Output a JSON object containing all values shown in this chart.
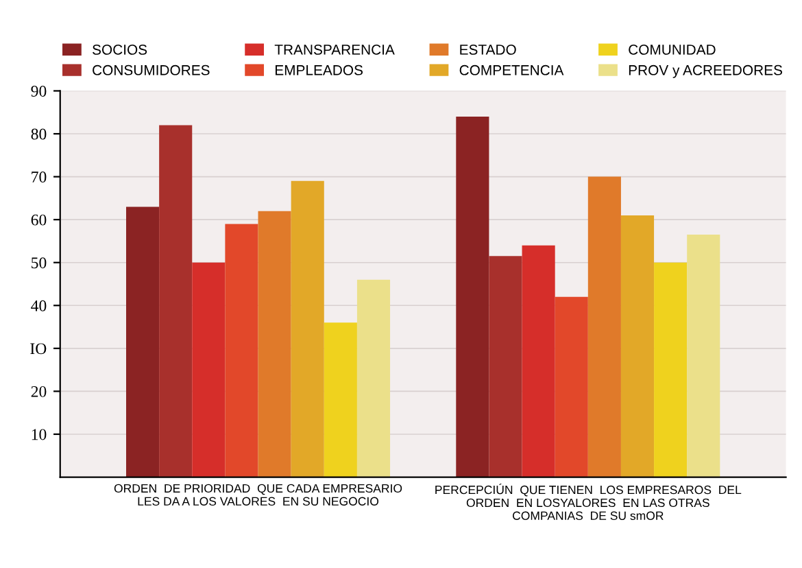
{
  "chart_data": {
    "type": "bar",
    "categories": [
      "ORDEN  DE PRIORIDAD  QUE CADA EMPRESARIO\nLES DA A LOS VALORES  EN SU NEGOCIO",
      "PERCEPCIÚN  QUE TIENEN  LOS EMPRESAROS  DEL\nORDEN  EN LOSYALORES  EN LAS OTRAS\nCOMPANIAS  DE SU smOR"
    ],
    "series": [
      {
        "name": "SOCIOS",
        "color": "#8b2323",
        "values": [
          63,
          84
        ]
      },
      {
        "name": "CONSUMIDORES",
        "color": "#a8302c",
        "values": [
          82,
          51.5
        ]
      },
      {
        "name": "TRANSPARENCIA",
        "color": "#d62e2a",
        "values": [
          50,
          54
        ]
      },
      {
        "name": "EMPLEADOS",
        "color": "#e2482a",
        "values": [
          59,
          42
        ]
      },
      {
        "name": "ESTADO",
        "color": "#e07a2a",
        "values": [
          62,
          70
        ]
      },
      {
        "name": "COMPETENCIA",
        "color": "#e2a828",
        "values": [
          69,
          61
        ]
      },
      {
        "name": "COMUNIDAD",
        "color": "#efd21e",
        "values": [
          36,
          50
        ]
      },
      {
        "name": "PROV y ACREEDORES",
        "color": "#ebe08a",
        "values": [
          46,
          56.5
        ]
      }
    ],
    "ylim": [
      0,
      90
    ],
    "yticks": [
      10,
      20,
      {
        "value": 30,
        "label": "IO"
      },
      40,
      50,
      60,
      70,
      80,
      90
    ],
    "grid": "y",
    "legend": "top"
  }
}
